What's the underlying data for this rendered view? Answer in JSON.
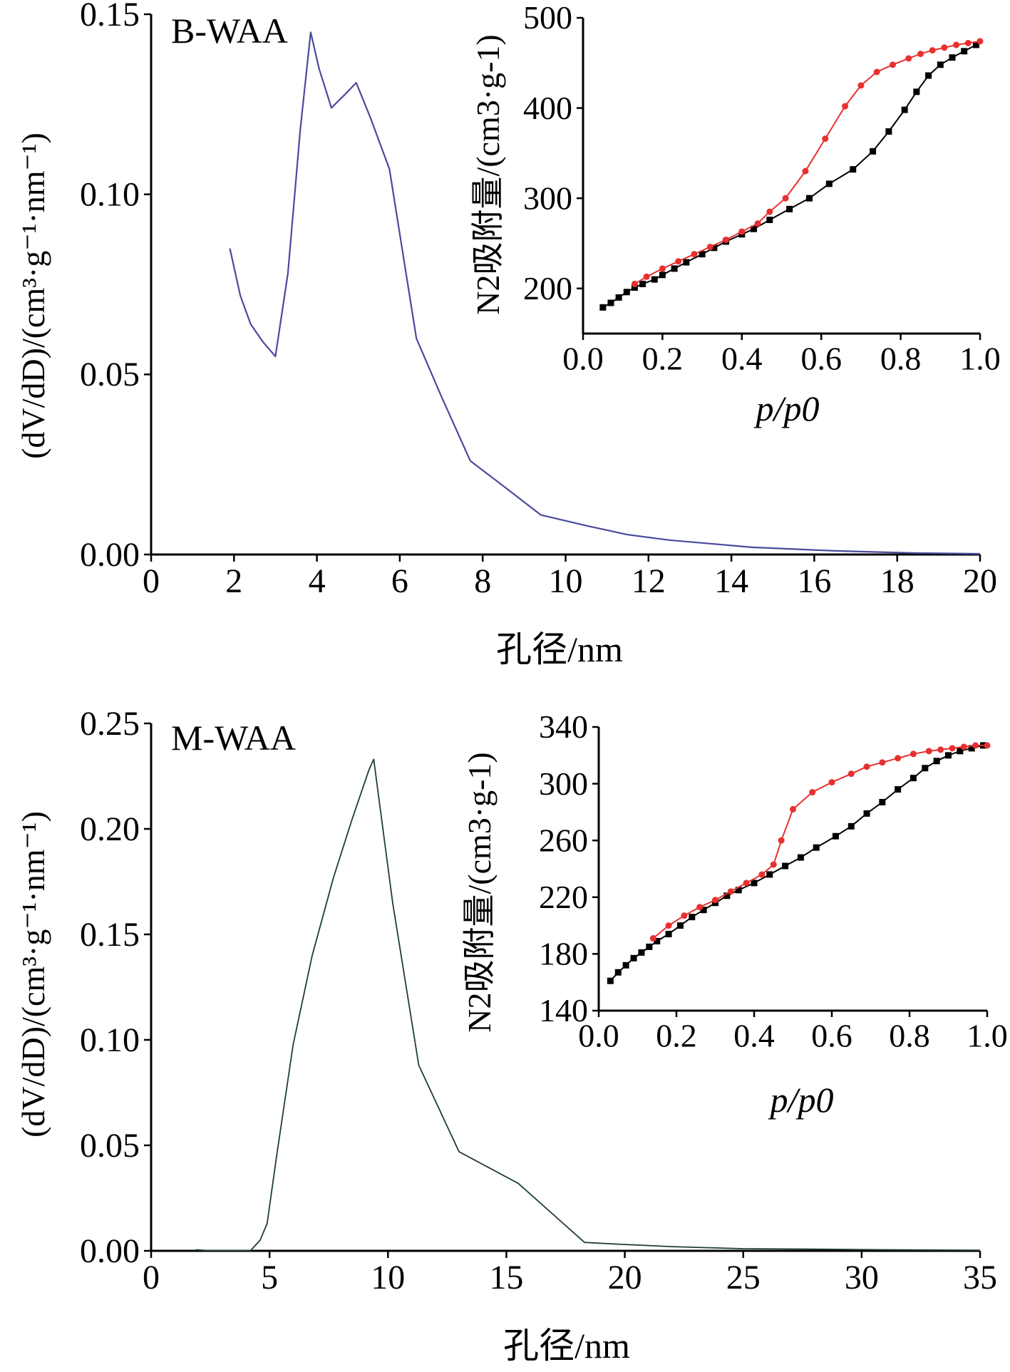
{
  "figure": {
    "background": "#ffffff",
    "axis_color": "#000000"
  },
  "chart_data": [
    {
      "id": "top-main",
      "type": "line",
      "annotation": "B-WAA",
      "xlabel": "孔径/nm",
      "ylabel": "(dV/dD)/(cm³·g⁻¹·nm⁻¹)",
      "xlim": [
        0,
        20
      ],
      "ylim": [
        0,
        0.15
      ],
      "xticks": [
        0,
        2,
        4,
        6,
        8,
        10,
        12,
        14,
        16,
        18,
        20
      ],
      "xtick_labels": [
        "0",
        "2",
        "4",
        "6",
        "8",
        "10",
        "12",
        "14",
        "16",
        "18",
        "20"
      ],
      "yticks": [
        0,
        0.05,
        0.1,
        0.15
      ],
      "ytick_labels": [
        "0.00",
        "0.05",
        "0.10",
        "0.15"
      ],
      "series": [
        {
          "color": "#4a4a9e",
          "x": [
            1.9,
            2.15,
            2.4,
            2.7,
            3.0,
            3.3,
            3.6,
            3.85,
            4.05,
            4.35,
            4.7,
            4.95,
            5.3,
            5.75,
            6.4,
            7.0,
            7.7,
            8.5,
            9.4,
            10.5,
            11.5,
            12.5,
            13.5,
            14.5,
            15.5,
            16.5,
            17.5,
            18.5,
            20.0
          ],
          "y": [
            0.085,
            0.072,
            0.064,
            0.059,
            0.055,
            0.078,
            0.118,
            0.145,
            0.135,
            0.124,
            0.128,
            0.131,
            0.121,
            0.107,
            0.06,
            0.044,
            0.026,
            0.019,
            0.011,
            0.008,
            0.0055,
            0.004,
            0.003,
            0.002,
            0.0015,
            0.001,
            0.0007,
            0.0004,
            0.0002
          ]
        }
      ]
    },
    {
      "id": "top-inset",
      "type": "line",
      "xlabel": "p/p0",
      "ylabel": "N2吸附量/(cm3·g-1)",
      "xlim": [
        0,
        1.0
      ],
      "ylim": [
        150,
        500
      ],
      "xticks": [
        0,
        0.2,
        0.4,
        0.6,
        0.8,
        1.0
      ],
      "xtick_labels": [
        "0.0",
        "0.2",
        "0.4",
        "0.6",
        "0.8",
        "1.0"
      ],
      "yticks": [
        200,
        300,
        400,
        500
      ],
      "ytick_labels": [
        "200",
        "300",
        "400",
        "500"
      ],
      "series": [
        {
          "color": "#000000",
          "marker": "square",
          "x": [
            0.05,
            0.07,
            0.09,
            0.11,
            0.13,
            0.15,
            0.18,
            0.2,
            0.23,
            0.26,
            0.3,
            0.33,
            0.36,
            0.4,
            0.43,
            0.47,
            0.52,
            0.57,
            0.62,
            0.68,
            0.73,
            0.77,
            0.81,
            0.84,
            0.87,
            0.9,
            0.93,
            0.96,
            0.99
          ],
          "y": [
            179,
            184,
            190,
            196,
            201,
            205,
            210,
            215,
            222,
            229,
            238,
            245,
            252,
            260,
            266,
            276,
            288,
            300,
            316,
            332,
            352,
            374,
            398,
            418,
            436,
            448,
            456,
            463,
            470
          ]
        },
        {
          "color": "#e83030",
          "marker": "circle",
          "x": [
            1.0,
            0.97,
            0.94,
            0.91,
            0.88,
            0.85,
            0.82,
            0.78,
            0.74,
            0.7,
            0.66,
            0.61,
            0.56,
            0.51,
            0.47,
            0.44,
            0.4,
            0.36,
            0.32,
            0.28,
            0.24,
            0.2,
            0.16,
            0.13
          ],
          "y": [
            474,
            472,
            470,
            467,
            464,
            460,
            455,
            448,
            440,
            425,
            402,
            366,
            330,
            300,
            285,
            272,
            263,
            254,
            246,
            238,
            230,
            222,
            213,
            205
          ]
        }
      ]
    },
    {
      "id": "bottom-main",
      "type": "line",
      "annotation": "M-WAA",
      "xlabel": "孔径/nm",
      "ylabel": "(dV/dD)/(cm³·g⁻¹·nm⁻¹)",
      "xlim": [
        0,
        35
      ],
      "ylim": [
        0,
        0.25
      ],
      "xticks": [
        0,
        5,
        10,
        15,
        20,
        25,
        30,
        35
      ],
      "xtick_labels": [
        "0",
        "5",
        "10",
        "15",
        "20",
        "25",
        "30",
        "35"
      ],
      "yticks": [
        0,
        0.05,
        0.1,
        0.15,
        0.2,
        0.25
      ],
      "ytick_labels": [
        "0.00",
        "0.05",
        "0.10",
        "0.15",
        "0.20",
        "0.25"
      ],
      "series": [
        {
          "color": "#1f3f2f",
          "x": [
            1.9,
            2.3,
            4.2,
            4.6,
            4.9,
            5.3,
            6.0,
            6.8,
            7.7,
            8.5,
            9.2,
            9.4,
            10.2,
            11.3,
            13.0,
            15.5,
            18.3,
            20.0,
            22.0,
            25.0,
            28.0,
            31.0,
            35.0
          ],
          "y": [
            0.0005,
            0.0002,
            0.0002,
            0.005,
            0.013,
            0.045,
            0.098,
            0.14,
            0.177,
            0.205,
            0.228,
            0.233,
            0.165,
            0.088,
            0.047,
            0.032,
            0.004,
            0.003,
            0.002,
            0.001,
            0.0008,
            0.0005,
            0.0003
          ]
        }
      ]
    },
    {
      "id": "bottom-inset",
      "type": "line",
      "xlabel": "p/p0",
      "ylabel": "N2吸附量/(cm3·g-1)",
      "xlim": [
        0,
        1.0
      ],
      "ylim": [
        140,
        340
      ],
      "xticks": [
        0,
        0.2,
        0.4,
        0.6,
        0.8,
        1.0
      ],
      "xtick_labels": [
        "0.0",
        "0.2",
        "0.4",
        "0.6",
        "0.8",
        "1.0"
      ],
      "yticks": [
        140,
        180,
        220,
        260,
        300,
        340
      ],
      "ytick_labels": [
        "140",
        "180",
        "220",
        "260",
        "300",
        "340"
      ],
      "series": [
        {
          "color": "#000000",
          "marker": "square",
          "x": [
            0.03,
            0.05,
            0.07,
            0.09,
            0.11,
            0.13,
            0.15,
            0.18,
            0.21,
            0.24,
            0.27,
            0.3,
            0.33,
            0.36,
            0.4,
            0.44,
            0.48,
            0.52,
            0.56,
            0.61,
            0.65,
            0.69,
            0.73,
            0.77,
            0.81,
            0.84,
            0.87,
            0.9,
            0.93,
            0.96,
            0.99
          ],
          "y": [
            161,
            167,
            172,
            177,
            181,
            185,
            189,
            194,
            200,
            206,
            211,
            216,
            221,
            225,
            230,
            236,
            242,
            248,
            255,
            263,
            270,
            279,
            287,
            296,
            304,
            311,
            316,
            320,
            323,
            325,
            327
          ]
        },
        {
          "color": "#e83030",
          "marker": "circle",
          "x": [
            1.0,
            0.97,
            0.94,
            0.91,
            0.88,
            0.85,
            0.81,
            0.77,
            0.73,
            0.69,
            0.65,
            0.6,
            0.55,
            0.5,
            0.47,
            0.45,
            0.42,
            0.38,
            0.34,
            0.3,
            0.26,
            0.22,
            0.18,
            0.14
          ],
          "y": [
            327,
            327,
            326,
            325,
            324,
            323,
            321,
            318,
            315,
            312,
            307,
            301,
            294,
            282,
            260,
            243,
            236,
            230,
            224,
            218,
            213,
            207,
            200,
            191
          ]
        }
      ]
    }
  ]
}
